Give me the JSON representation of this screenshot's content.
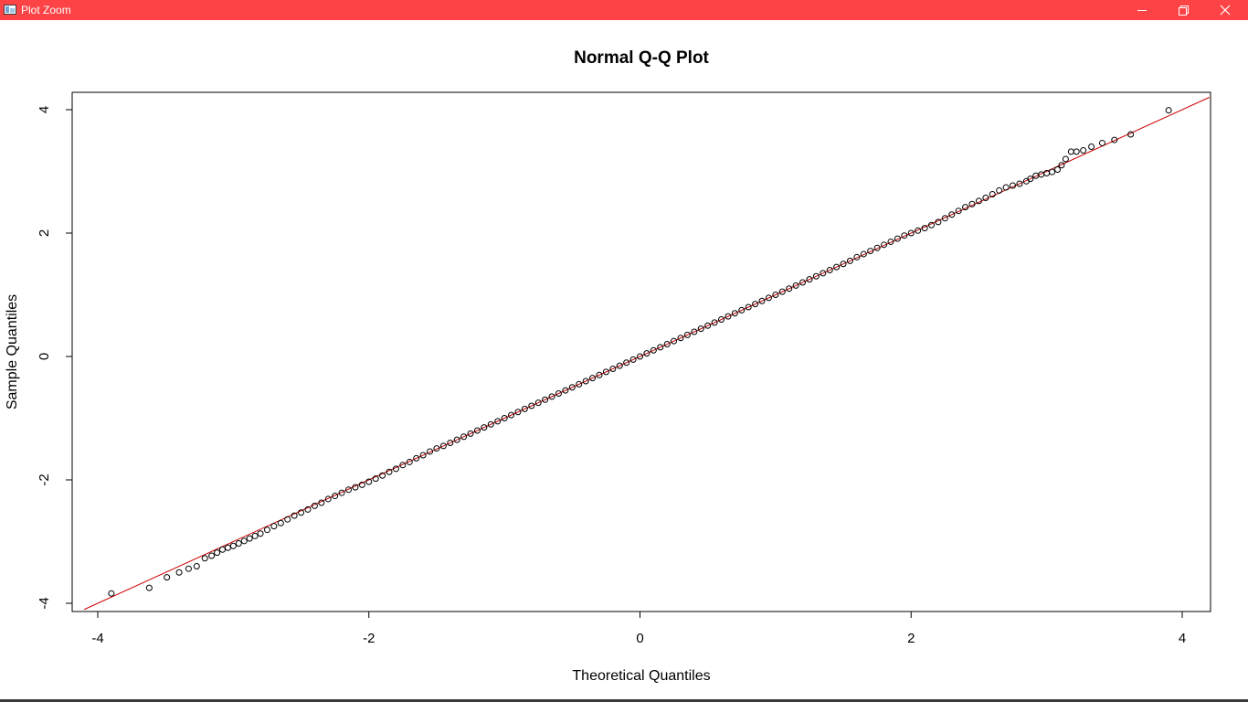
{
  "window": {
    "title": "Plot Zoom",
    "titlebar_color": "#fe4346",
    "controls": [
      "minimize-icon",
      "restore-icon",
      "close-icon"
    ]
  },
  "chart_data": {
    "type": "scatter",
    "title": "Normal Q-Q Plot",
    "xlabel": "Theoretical Quantiles",
    "ylabel": "Sample Quantiles",
    "xlim": [
      -4.1,
      4.2
    ],
    "ylim": [
      -4.2,
      4.2
    ],
    "xticks": [
      -4,
      -2,
      0,
      2,
      4
    ],
    "yticks": [
      -4,
      -2,
      0,
      2,
      4
    ],
    "xtick_labels": [
      "-4",
      "-2",
      "0",
      "2",
      "4"
    ],
    "ytick_labels": [
      "-4",
      "-2",
      "0",
      "2",
      "4"
    ],
    "grid": false,
    "marker": "open-circle",
    "point_color": "#000000",
    "reference_line": {
      "slope": 1.0,
      "intercept": 0.0,
      "color": "#cc0000"
    },
    "series": [
      {
        "points": [
          [
            -3.9,
            -3.84
          ],
          [
            -3.62,
            -3.75
          ],
          [
            -3.49,
            -3.58
          ],
          [
            -3.4,
            -3.5
          ],
          [
            -3.33,
            -3.44
          ],
          [
            -3.27,
            -3.4
          ],
          [
            -3.21,
            -3.27
          ],
          [
            -3.16,
            -3.23
          ],
          [
            -3.12,
            -3.18
          ],
          [
            -3.08,
            -3.13
          ],
          [
            -3.04,
            -3.1
          ],
          [
            -3.0,
            -3.07
          ],
          [
            -2.96,
            -3.03
          ],
          [
            -2.92,
            -2.99
          ],
          [
            -2.88,
            -2.95
          ],
          [
            -2.84,
            -2.91
          ],
          [
            -2.8,
            -2.87
          ],
          [
            -2.75,
            -2.81
          ],
          [
            -2.7,
            -2.75
          ],
          [
            -2.65,
            -2.7
          ],
          [
            -2.6,
            -2.64
          ],
          [
            -2.55,
            -2.58
          ],
          [
            -2.5,
            -2.53
          ],
          [
            -2.45,
            -2.48
          ],
          [
            -2.4,
            -2.42
          ],
          [
            -2.35,
            -2.37
          ],
          [
            -2.3,
            -2.31
          ],
          [
            -2.25,
            -2.26
          ],
          [
            -2.2,
            -2.21
          ],
          [
            -2.15,
            -2.16
          ],
          [
            -2.1,
            -2.12
          ],
          [
            -2.05,
            -2.08
          ],
          [
            -2.0,
            -2.03
          ],
          [
            -1.95,
            -1.98
          ],
          [
            -1.9,
            -1.93
          ],
          [
            -1.85,
            -1.87
          ],
          [
            -1.8,
            -1.82
          ],
          [
            -1.75,
            -1.76
          ],
          [
            -1.7,
            -1.71
          ],
          [
            -1.65,
            -1.65
          ],
          [
            -1.6,
            -1.6
          ],
          [
            -1.55,
            -1.54
          ],
          [
            -1.5,
            -1.49
          ],
          [
            -1.45,
            -1.45
          ],
          [
            -1.4,
            -1.4
          ],
          [
            -1.35,
            -1.35
          ],
          [
            -1.3,
            -1.3
          ],
          [
            -1.25,
            -1.25
          ],
          [
            -1.2,
            -1.2
          ],
          [
            -1.15,
            -1.15
          ],
          [
            -1.1,
            -1.1
          ],
          [
            -1.05,
            -1.05
          ],
          [
            -1.0,
            -1.0
          ],
          [
            -0.95,
            -0.95
          ],
          [
            -0.9,
            -0.9
          ],
          [
            -0.85,
            -0.85
          ],
          [
            -0.8,
            -0.8
          ],
          [
            -0.75,
            -0.75
          ],
          [
            -0.7,
            -0.7
          ],
          [
            -0.65,
            -0.65
          ],
          [
            -0.6,
            -0.6
          ],
          [
            -0.55,
            -0.55
          ],
          [
            -0.5,
            -0.5
          ],
          [
            -0.45,
            -0.45
          ],
          [
            -0.4,
            -0.4
          ],
          [
            -0.35,
            -0.35
          ],
          [
            -0.3,
            -0.3
          ],
          [
            -0.25,
            -0.25
          ],
          [
            -0.2,
            -0.2
          ],
          [
            -0.15,
            -0.15
          ],
          [
            -0.1,
            -0.1
          ],
          [
            -0.05,
            -0.05
          ],
          [
            0.0,
            0.0
          ],
          [
            0.05,
            0.05
          ],
          [
            0.1,
            0.1
          ],
          [
            0.15,
            0.15
          ],
          [
            0.2,
            0.2
          ],
          [
            0.25,
            0.25
          ],
          [
            0.3,
            0.3
          ],
          [
            0.35,
            0.35
          ],
          [
            0.4,
            0.4
          ],
          [
            0.45,
            0.45
          ],
          [
            0.5,
            0.5
          ],
          [
            0.55,
            0.55
          ],
          [
            0.6,
            0.6
          ],
          [
            0.65,
            0.65
          ],
          [
            0.7,
            0.7
          ],
          [
            0.75,
            0.75
          ],
          [
            0.8,
            0.8
          ],
          [
            0.85,
            0.85
          ],
          [
            0.9,
            0.9
          ],
          [
            0.95,
            0.95
          ],
          [
            1.0,
            1.0
          ],
          [
            1.05,
            1.05
          ],
          [
            1.1,
            1.1
          ],
          [
            1.15,
            1.15
          ],
          [
            1.2,
            1.2
          ],
          [
            1.25,
            1.25
          ],
          [
            1.3,
            1.3
          ],
          [
            1.35,
            1.35
          ],
          [
            1.4,
            1.4
          ],
          [
            1.45,
            1.45
          ],
          [
            1.5,
            1.5
          ],
          [
            1.55,
            1.55
          ],
          [
            1.6,
            1.61
          ],
          [
            1.65,
            1.66
          ],
          [
            1.7,
            1.71
          ],
          [
            1.75,
            1.76
          ],
          [
            1.8,
            1.81
          ],
          [
            1.85,
            1.86
          ],
          [
            1.9,
            1.91
          ],
          [
            1.95,
            1.96
          ],
          [
            2.0,
            2.0
          ],
          [
            2.05,
            2.04
          ],
          [
            2.1,
            2.08
          ],
          [
            2.15,
            2.13
          ],
          [
            2.2,
            2.18
          ],
          [
            2.25,
            2.24
          ],
          [
            2.3,
            2.3
          ],
          [
            2.35,
            2.36
          ],
          [
            2.4,
            2.42
          ],
          [
            2.45,
            2.47
          ],
          [
            2.5,
            2.52
          ],
          [
            2.55,
            2.57
          ],
          [
            2.6,
            2.63
          ],
          [
            2.65,
            2.69
          ],
          [
            2.7,
            2.74
          ],
          [
            2.75,
            2.77
          ],
          [
            2.8,
            2.8
          ],
          [
            2.85,
            2.84
          ],
          [
            2.88,
            2.88
          ],
          [
            2.92,
            2.93
          ],
          [
            2.96,
            2.95
          ],
          [
            3.0,
            2.97
          ],
          [
            3.04,
            2.99
          ],
          [
            3.08,
            3.03
          ],
          [
            3.11,
            3.1
          ],
          [
            3.14,
            3.2
          ],
          [
            3.18,
            3.32
          ],
          [
            3.22,
            3.32
          ],
          [
            3.27,
            3.34
          ],
          [
            3.33,
            3.4
          ],
          [
            3.41,
            3.46
          ],
          [
            3.5,
            3.51
          ],
          [
            3.62,
            3.6
          ],
          [
            3.9,
            3.99
          ]
        ]
      }
    ]
  }
}
